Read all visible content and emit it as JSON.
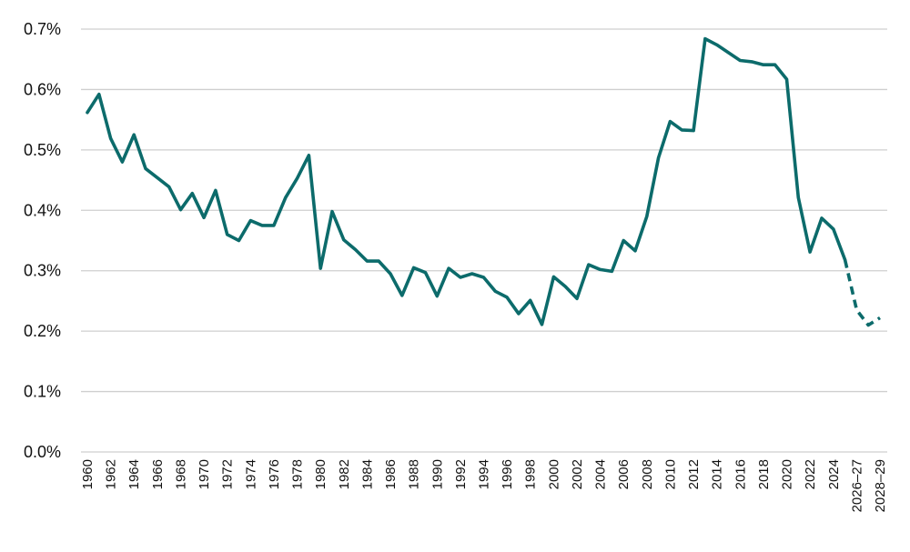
{
  "chart_data": {
    "type": "line",
    "title": "",
    "xlabel": "",
    "ylabel": "",
    "ylim": [
      0,
      0.7
    ],
    "y_ticks": [
      "0.0%",
      "0.1%",
      "0.2%",
      "0.3%",
      "0.4%",
      "0.5%",
      "0.6%",
      "0.7%"
    ],
    "grid": true,
    "line_color": "#0c6b6b",
    "categories": [
      "1960",
      "1961",
      "1962",
      "1963",
      "1964",
      "1965",
      "1966",
      "1967",
      "1968",
      "1969",
      "1970",
      "1971",
      "1972",
      "1973",
      "1974",
      "1975",
      "1976",
      "1977",
      "1978",
      "1979",
      "1980",
      "1981",
      "1982",
      "1983",
      "1984",
      "1985",
      "1986",
      "1987",
      "1988",
      "1989",
      "1990",
      "1991",
      "1992",
      "1993",
      "1994",
      "1995",
      "1996",
      "1997",
      "1998",
      "1999",
      "2000",
      "2001",
      "2002",
      "2003",
      "2004",
      "2005",
      "2006",
      "2007",
      "2008",
      "2009",
      "2010",
      "2011",
      "2012",
      "2013",
      "2014",
      "2015",
      "2016",
      "2017",
      "2018",
      "2019",
      "2020",
      "2021",
      "2022",
      "2023",
      "2024",
      "2025",
      "2026-27",
      "2027-28",
      "2028-29"
    ],
    "x_tick_labels": [
      "1960",
      "1962",
      "1964",
      "1966",
      "1968",
      "1970",
      "1972",
      "1974",
      "1976",
      "1978",
      "1980",
      "1982",
      "1984",
      "1986",
      "1988",
      "1990",
      "1992",
      "1994",
      "1996",
      "1998",
      "2000",
      "2002",
      "2004",
      "2006",
      "2008",
      "2010",
      "2012",
      "2014",
      "2016",
      "2018",
      "2020",
      "2022",
      "2024",
      "2026-27",
      "2028-29"
    ],
    "series": [
      {
        "values": [
          0.562,
          0.592,
          0.519,
          0.48,
          0.525,
          0.469,
          0.454,
          0.439,
          0.401,
          0.428,
          0.388,
          0.433,
          0.36,
          0.35,
          0.383,
          0.375,
          0.375,
          0.421,
          0.453,
          0.491,
          0.304,
          0.398,
          0.351,
          0.335,
          0.316,
          0.316,
          0.295,
          0.259,
          0.305,
          0.297,
          0.258,
          0.304,
          0.289,
          0.295,
          0.289,
          0.266,
          0.256,
          0.229,
          0.251,
          0.211,
          0.29,
          0.274,
          0.254,
          0.31,
          0.302,
          0.299,
          0.35,
          0.333,
          0.39,
          0.487,
          0.547,
          0.533,
          0.532,
          0.684,
          0.674,
          0.661,
          0.648,
          0.646,
          0.641,
          0.641,
          0.617,
          0.421,
          0.331,
          0.387,
          0.369,
          0.318,
          0.235,
          0.21,
          0.222
        ],
        "projected_from": "2025"
      }
    ]
  }
}
